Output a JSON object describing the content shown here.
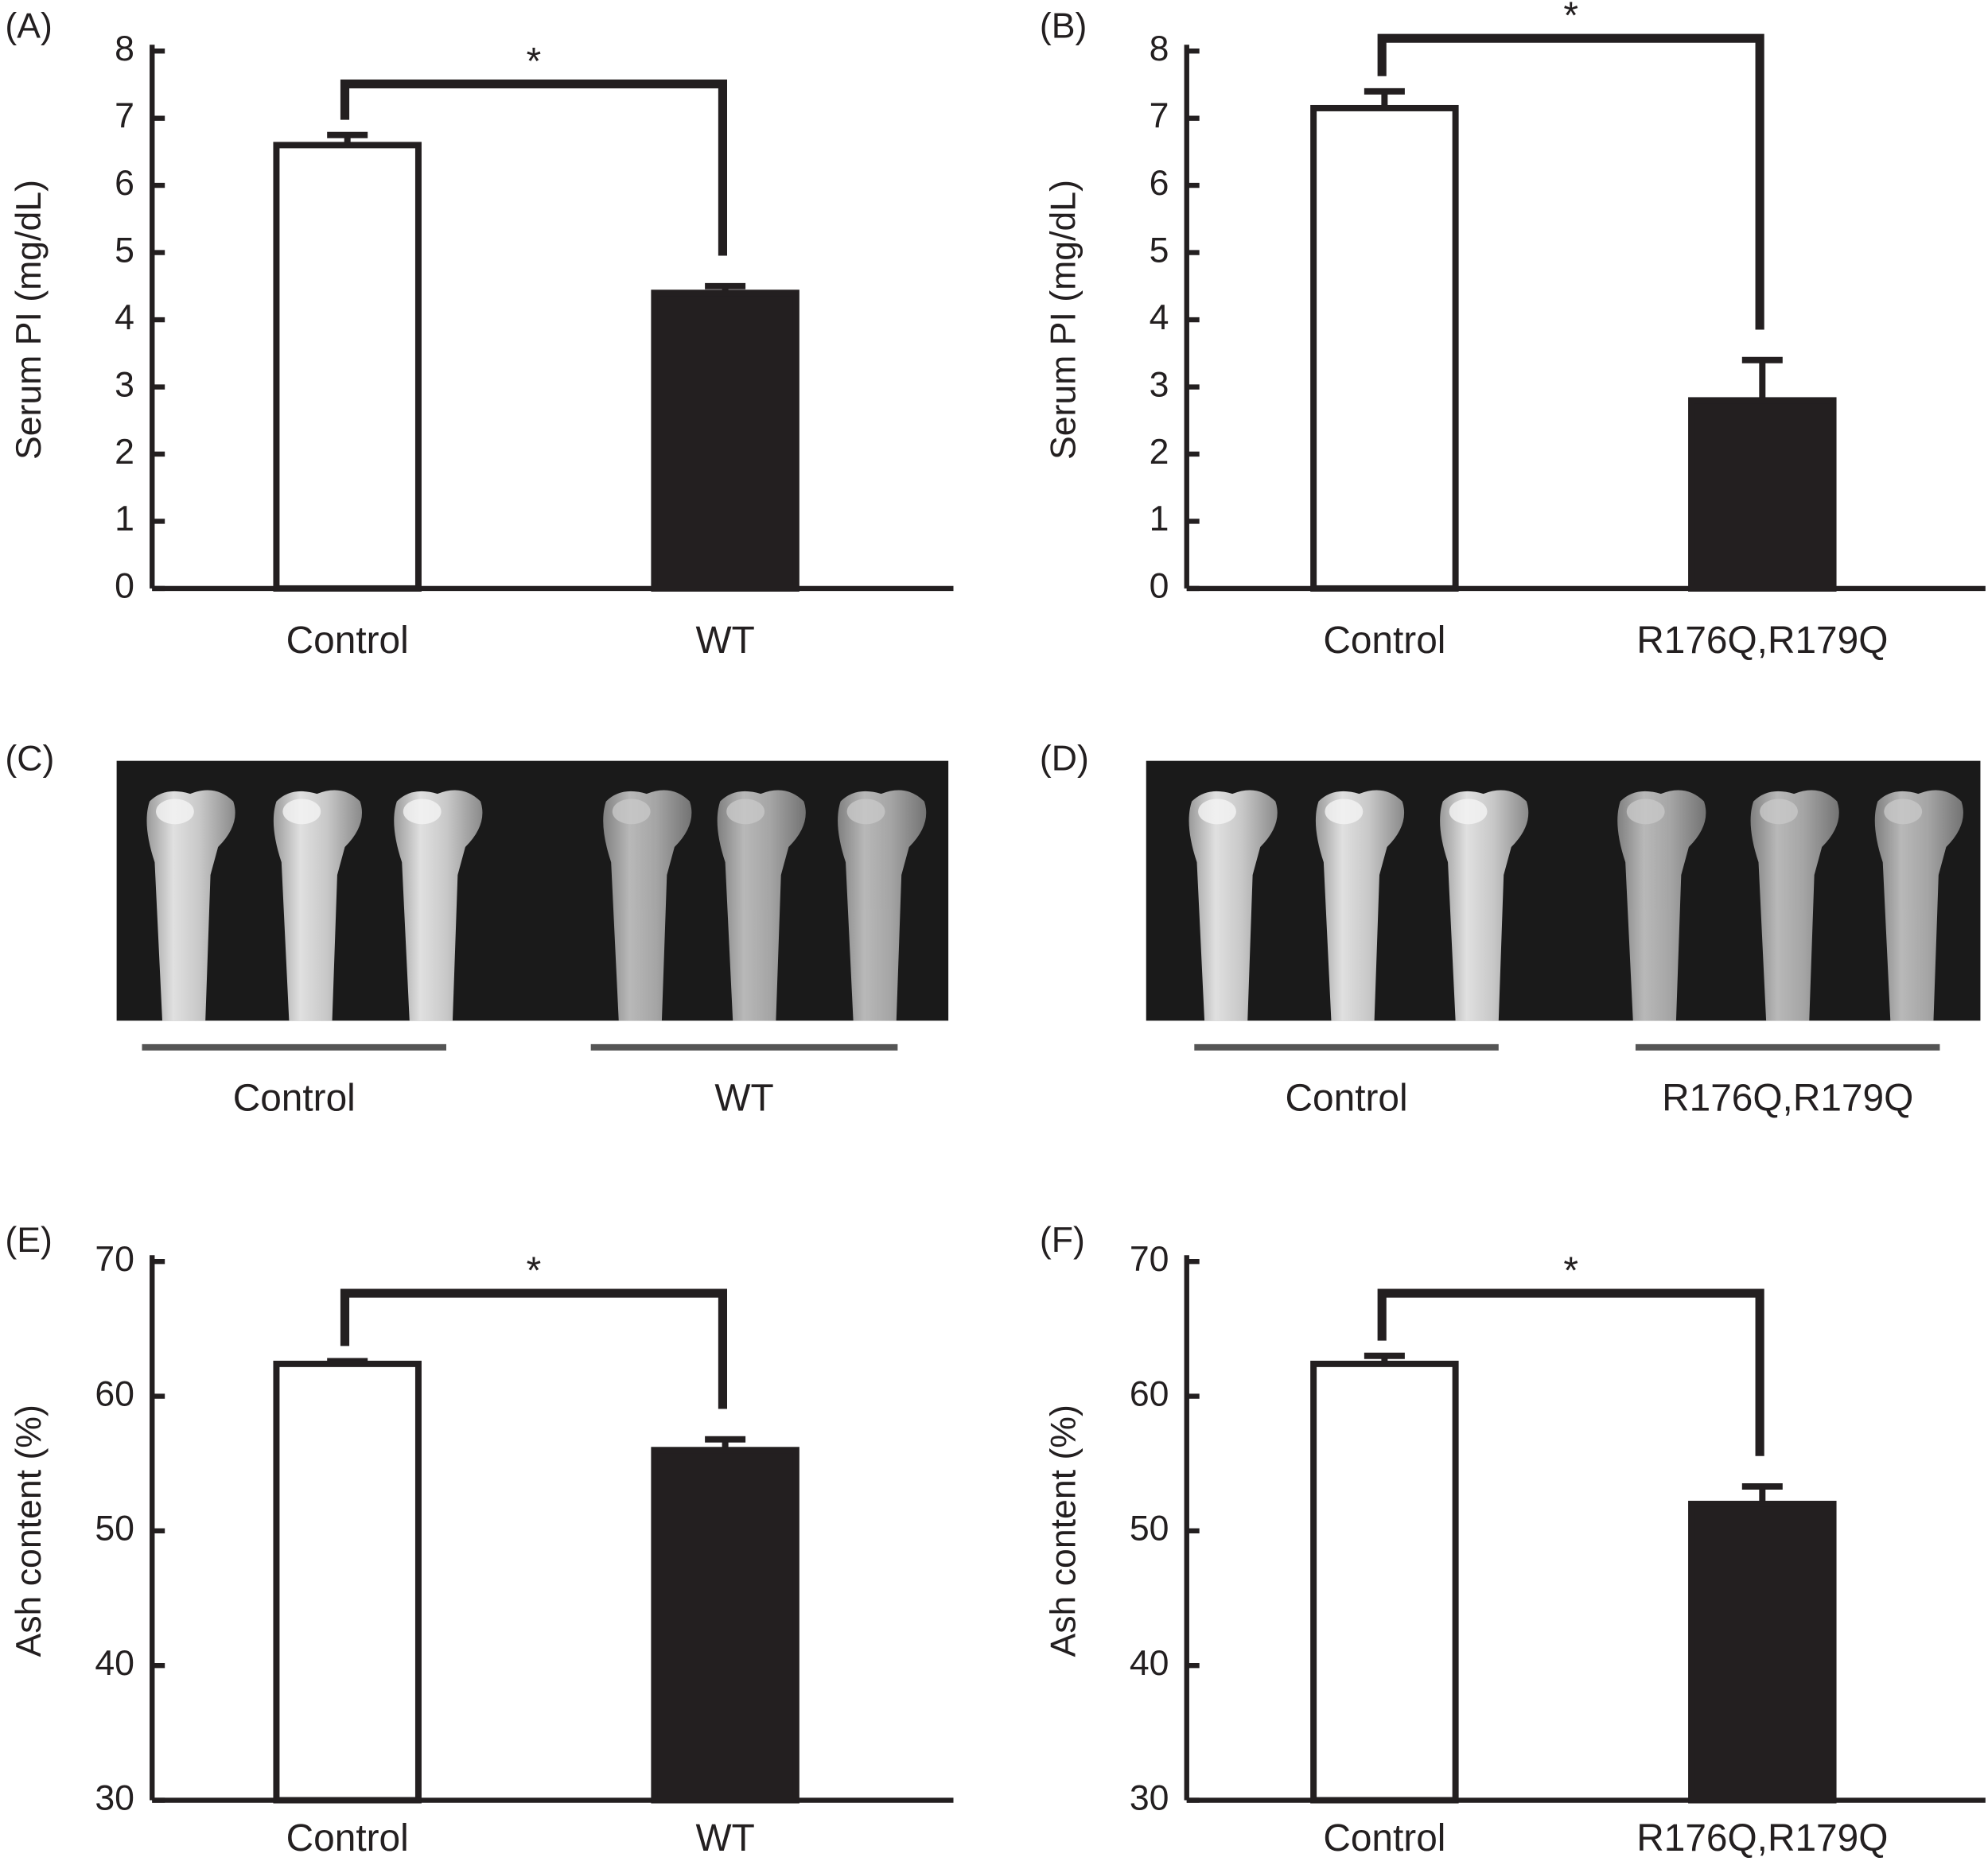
{
  "chart_data": [
    {
      "panel": "(A)",
      "type": "bar",
      "title": "",
      "xlabel": "",
      "ylabel": "Serum PI (mg/dL)",
      "categories": [
        "Control",
        "WT"
      ],
      "values": [
        6.6,
        4.4
      ],
      "errors": [
        0.15,
        0.1
      ],
      "fills": [
        "#ffffff",
        "#231f20"
      ],
      "ylim": [
        0,
        8
      ],
      "yticks": [
        "0",
        "1",
        "2",
        "3",
        "4",
        "5",
        "6",
        "7",
        "8"
      ],
      "significance": "*",
      "grid": false
    },
    {
      "panel": "(B)",
      "type": "bar",
      "title": "",
      "xlabel": "",
      "ylabel": "Serum PI (mg/dL)",
      "categories": [
        "Control",
        "R176Q,R179Q"
      ],
      "values": [
        7.15,
        2.8
      ],
      "errors": [
        0.25,
        0.6
      ],
      "fills": [
        "#ffffff",
        "#231f20"
      ],
      "ylim": [
        0,
        8
      ],
      "yticks": [
        "0",
        "1",
        "2",
        "3",
        "4",
        "5",
        "6",
        "7",
        "8"
      ],
      "significance": "*",
      "grid": false
    },
    {
      "panel": "(E)",
      "type": "bar",
      "title": "",
      "xlabel": "",
      "ylabel": "Ash content (%)",
      "categories": [
        "Control",
        "WT"
      ],
      "values": [
        62.4,
        56
      ],
      "errors": [
        0.2,
        0.8
      ],
      "fills": [
        "#ffffff",
        "#231f20"
      ],
      "ylim": [
        30,
        70
      ],
      "yticks": [
        "30",
        "40",
        "50",
        "60",
        "70"
      ],
      "significance": "*",
      "grid": false
    },
    {
      "panel": "(F)",
      "type": "bar",
      "title": "",
      "xlabel": "",
      "ylabel": "Ash content (%)",
      "categories": [
        "Control",
        "R176Q,R179Q"
      ],
      "values": [
        62.4,
        52
      ],
      "errors": [
        0.6,
        1.3
      ],
      "fills": [
        "#ffffff",
        "#231f20"
      ],
      "ylim": [
        30,
        70
      ],
      "yticks": [
        "30",
        "40",
        "50",
        "60",
        "70"
      ],
      "significance": "*",
      "grid": false
    }
  ],
  "images": [
    {
      "panel": "(C)",
      "groups": [
        "Control",
        "WT"
      ],
      "bones_per_group": 3
    },
    {
      "panel": "(D)",
      "groups": [
        "Control",
        "R176Q,R179Q"
      ],
      "bones_per_group": 3
    }
  ]
}
